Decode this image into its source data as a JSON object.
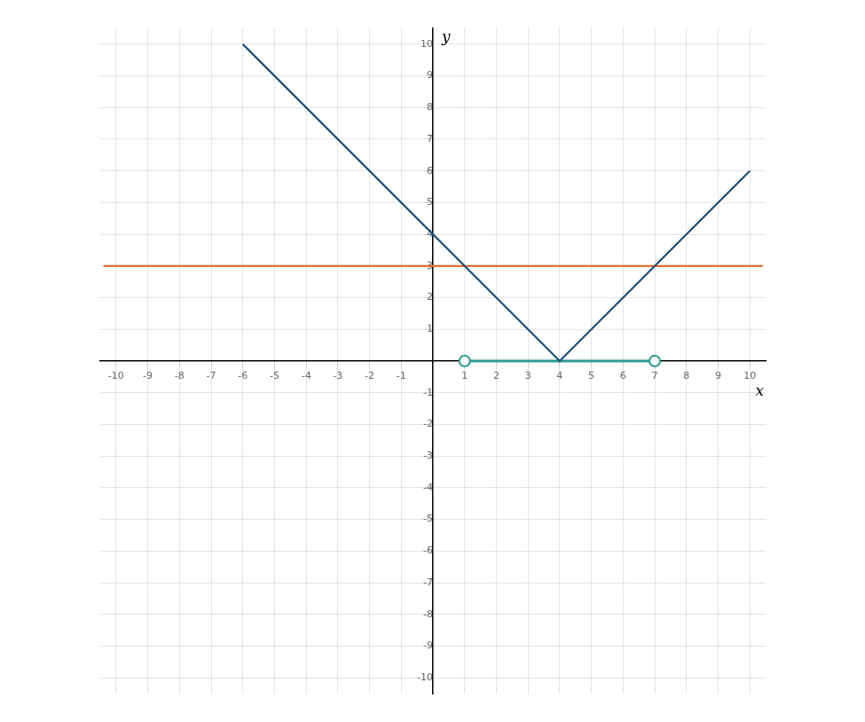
{
  "chart_data": {
    "type": "line",
    "xlabel": "x",
    "ylabel": "y",
    "xlim": [
      -10.5,
      10.5
    ],
    "ylim": [
      -10.5,
      10.5
    ],
    "xticks": [
      -10,
      -9,
      -8,
      -7,
      -6,
      -5,
      -4,
      -3,
      -2,
      -1,
      1,
      2,
      3,
      4,
      5,
      6,
      7,
      8,
      9,
      10
    ],
    "yticks": [
      -10,
      -9,
      -8,
      -7,
      -6,
      -5,
      -4,
      -3,
      -2,
      -1,
      1,
      2,
      3,
      4,
      5,
      6,
      7,
      8,
      9,
      10
    ],
    "grid": true,
    "series": [
      {
        "color": "#1f4e79",
        "x": [
          -6,
          4,
          10
        ],
        "values": [
          10,
          0,
          6
        ]
      },
      {
        "color": "#e07030",
        "x": [
          -10.4,
          10.4
        ],
        "values": [
          3,
          3
        ]
      },
      {
        "color": "#2a9d8f",
        "x": [
          1,
          7
        ],
        "values": [
          0,
          0
        ],
        "marker": "circle"
      }
    ]
  }
}
